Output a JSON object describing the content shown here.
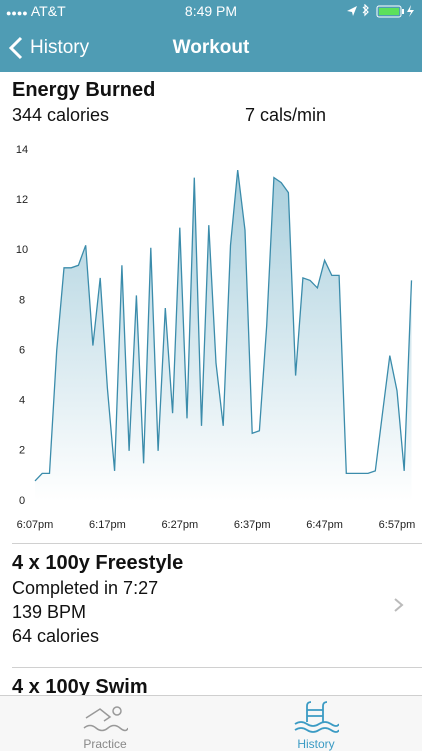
{
  "status_bar": {
    "carrier": "AT&T",
    "time": "8:49 PM"
  },
  "nav": {
    "back": "History",
    "title": "Workout"
  },
  "summary": {
    "title": "Energy Burned",
    "calories": "344 calories",
    "rate": "7 cals/min"
  },
  "chart_data": {
    "type": "area",
    "categories": [
      "6:07pm",
      null,
      null,
      null,
      null,
      null,
      null,
      null,
      null,
      null,
      "6:17pm",
      null,
      null,
      null,
      null,
      null,
      null,
      null,
      null,
      null,
      "6:27pm",
      null,
      null,
      null,
      null,
      null,
      null,
      null,
      null,
      null,
      "6:37pm",
      null,
      null,
      null,
      null,
      null,
      null,
      null,
      null,
      null,
      "6:47pm",
      null,
      null,
      null,
      null,
      null,
      null,
      null,
      null,
      null,
      "6:57pm",
      null,
      null
    ],
    "values": [
      0.8,
      1.1,
      1.1,
      6,
      9.3,
      9.3,
      9.4,
      10.2,
      6.2,
      8.9,
      4.5,
      1.2,
      9.4,
      2,
      8.2,
      1.5,
      10.1,
      2,
      7.7,
      3.5,
      10.9,
      3.3,
      12.9,
      3,
      11,
      5.5,
      3,
      10.2,
      13.2,
      10.8,
      2.7,
      2.8,
      7,
      12.9,
      12.7,
      12.3,
      5,
      8.9,
      8.8,
      8.5,
      9.6,
      9,
      9,
      1.1,
      1.1,
      1.1,
      1.1,
      1.2,
      3.5,
      5.8,
      4.4,
      1.2,
      8.8
    ],
    "color": "#3b8cab",
    "fill_color": "#a9cfdd",
    "ylim": [
      -0.4,
      14.4
    ],
    "yticks": [
      0,
      2,
      4,
      6,
      8,
      10,
      12,
      14
    ],
    "grid": false
  },
  "workouts": [
    {
      "title": "4 x 100y Freestyle",
      "lines": [
        "Completed in 7:27",
        "139 BPM",
        "64 calories"
      ]
    },
    {
      "title": "4 x 100y Swim"
    }
  ],
  "tabs": [
    "Practice",
    "History"
  ]
}
